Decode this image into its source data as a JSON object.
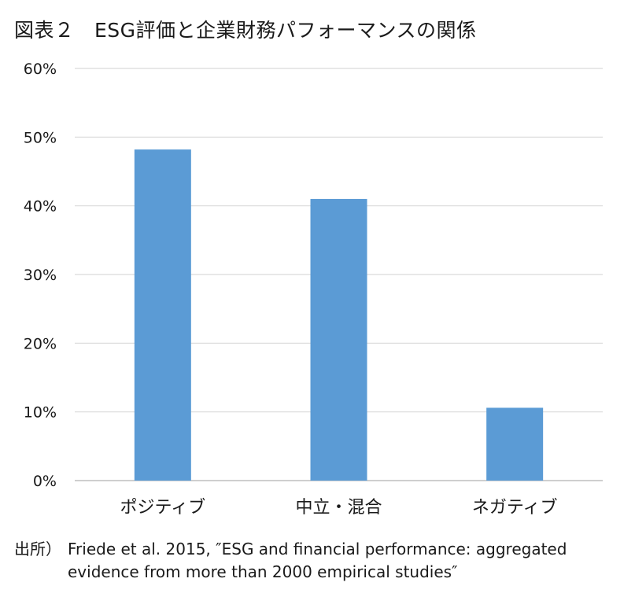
{
  "title": "図表２　ESG評価と企業財務パフォーマンスの関係",
  "chart_data": {
    "type": "bar",
    "title": "図表２　ESG評価と企業財務パフォーマンスの関係",
    "categories": [
      "ポジティブ",
      "中立・混合",
      "ネガティブ"
    ],
    "values": [
      48.2,
      41.0,
      10.6
    ],
    "unit": "%",
    "ylim": [
      0,
      60
    ],
    "yticks": [
      "0%",
      "10%",
      "20%",
      "30%",
      "40%",
      "50%",
      "60%"
    ],
    "ytick_values": [
      0,
      10,
      20,
      30,
      40,
      50,
      60
    ],
    "grid": true,
    "legend": "none",
    "bar_color": "#5b9bd5",
    "grid_color": "#d9d9d9",
    "axis_color": "#bfbfbf"
  },
  "source": {
    "prefix": "出所）",
    "line1": "Friede et al. 2015, ″ESG and financial performance: aggregated",
    "line2": "evidence from more than 2000 empirical studies″"
  }
}
